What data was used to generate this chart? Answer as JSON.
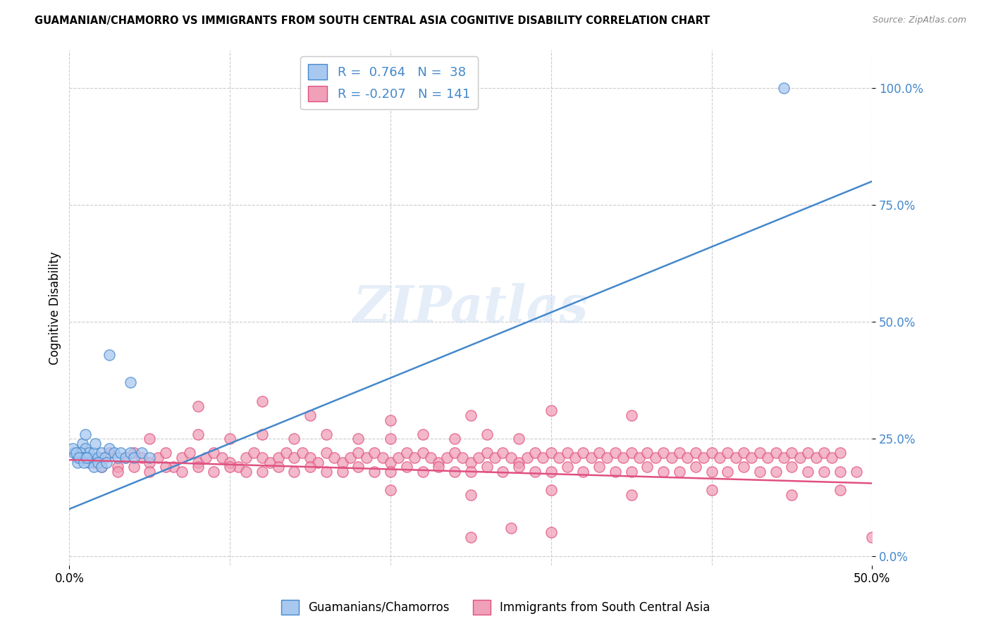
{
  "title": "GUAMANIAN/CHAMORRO VS IMMIGRANTS FROM SOUTH CENTRAL ASIA COGNITIVE DISABILITY CORRELATION CHART",
  "source": "Source: ZipAtlas.com",
  "ylabel": "Cognitive Disability",
  "ytick_vals": [
    0.0,
    25.0,
    50.0,
    75.0,
    100.0
  ],
  "ytick_labels": [
    "0.0%",
    "25.0%",
    "50.0%",
    "75.0%",
    "100.0%"
  ],
  "xtick_vals": [
    0.0,
    50.0
  ],
  "xtick_labels": [
    "0.0%",
    "50.0%"
  ],
  "xlim": [
    0.0,
    50.0
  ],
  "ylim": [
    -2.0,
    108.0
  ],
  "blue_color": "#A8C8F0",
  "pink_color": "#F0A0B8",
  "blue_line_color": "#4488CC",
  "pink_line_color": "#E05080",
  "watermark": "ZIPatlas",
  "blue_line": [
    [
      0.0,
      10.0
    ],
    [
      50.0,
      80.0
    ]
  ],
  "pink_line": [
    [
      0.0,
      20.5
    ],
    [
      50.0,
      15.5
    ]
  ],
  "blue_scatter": [
    [
      0.5,
      21.0
    ],
    [
      0.8,
      24.0
    ],
    [
      1.0,
      23.0
    ],
    [
      1.0,
      26.0
    ],
    [
      1.2,
      22.0
    ],
    [
      1.3,
      21.0
    ],
    [
      1.5,
      22.0
    ],
    [
      1.6,
      24.0
    ],
    [
      1.8,
      21.0
    ],
    [
      2.0,
      22.0
    ],
    [
      2.2,
      21.0
    ],
    [
      2.5,
      23.0
    ],
    [
      2.8,
      22.0
    ],
    [
      3.0,
      21.0
    ],
    [
      3.2,
      22.0
    ],
    [
      3.5,
      21.0
    ],
    [
      3.8,
      22.0
    ],
    [
      4.0,
      21.0
    ],
    [
      4.5,
      22.0
    ],
    [
      5.0,
      21.0
    ],
    [
      0.3,
      22.0
    ],
    [
      0.5,
      20.0
    ],
    [
      0.7,
      22.0
    ],
    [
      0.8,
      21.0
    ],
    [
      1.0,
      21.0
    ],
    [
      1.2,
      20.0
    ],
    [
      1.5,
      19.0
    ],
    [
      1.8,
      20.0
    ],
    [
      2.0,
      19.0
    ],
    [
      2.3,
      20.0
    ],
    [
      0.2,
      23.0
    ],
    [
      0.4,
      22.0
    ],
    [
      0.6,
      21.0
    ],
    [
      0.9,
      20.0
    ],
    [
      1.1,
      21.0
    ],
    [
      2.5,
      43.0
    ],
    [
      3.8,
      37.0
    ],
    [
      44.5,
      100.0
    ]
  ],
  "pink_scatter": [
    [
      1.0,
      21.0
    ],
    [
      1.5,
      20.0
    ],
    [
      2.0,
      21.0
    ],
    [
      2.5,
      22.0
    ],
    [
      3.0,
      19.0
    ],
    [
      3.5,
      21.0
    ],
    [
      4.0,
      22.0
    ],
    [
      4.5,
      21.0
    ],
    [
      5.0,
      20.0
    ],
    [
      5.5,
      21.0
    ],
    [
      6.0,
      22.0
    ],
    [
      6.5,
      19.0
    ],
    [
      7.0,
      21.0
    ],
    [
      7.5,
      22.0
    ],
    [
      8.0,
      20.0
    ],
    [
      8.5,
      21.0
    ],
    [
      9.0,
      22.0
    ],
    [
      9.5,
      21.0
    ],
    [
      10.0,
      20.0
    ],
    [
      10.5,
      19.0
    ],
    [
      11.0,
      21.0
    ],
    [
      11.5,
      22.0
    ],
    [
      12.0,
      21.0
    ],
    [
      12.5,
      20.0
    ],
    [
      13.0,
      21.0
    ],
    [
      13.5,
      22.0
    ],
    [
      14.0,
      21.0
    ],
    [
      14.5,
      22.0
    ],
    [
      15.0,
      21.0
    ],
    [
      15.5,
      20.0
    ],
    [
      16.0,
      22.0
    ],
    [
      16.5,
      21.0
    ],
    [
      17.0,
      20.0
    ],
    [
      17.5,
      21.0
    ],
    [
      18.0,
      22.0
    ],
    [
      18.5,
      21.0
    ],
    [
      19.0,
      22.0
    ],
    [
      19.5,
      21.0
    ],
    [
      20.0,
      20.0
    ],
    [
      20.5,
      21.0
    ],
    [
      21.0,
      22.0
    ],
    [
      21.5,
      21.0
    ],
    [
      22.0,
      22.0
    ],
    [
      22.5,
      21.0
    ],
    [
      23.0,
      20.0
    ],
    [
      23.5,
      21.0
    ],
    [
      24.0,
      22.0
    ],
    [
      24.5,
      21.0
    ],
    [
      25.0,
      20.0
    ],
    [
      25.5,
      21.0
    ],
    [
      26.0,
      22.0
    ],
    [
      26.5,
      21.0
    ],
    [
      27.0,
      22.0
    ],
    [
      27.5,
      21.0
    ],
    [
      28.0,
      20.0
    ],
    [
      28.5,
      21.0
    ],
    [
      29.0,
      22.0
    ],
    [
      29.5,
      21.0
    ],
    [
      30.0,
      22.0
    ],
    [
      30.5,
      21.0
    ],
    [
      31.0,
      22.0
    ],
    [
      31.5,
      21.0
    ],
    [
      32.0,
      22.0
    ],
    [
      32.5,
      21.0
    ],
    [
      33.0,
      22.0
    ],
    [
      33.5,
      21.0
    ],
    [
      34.0,
      22.0
    ],
    [
      34.5,
      21.0
    ],
    [
      35.0,
      22.0
    ],
    [
      35.5,
      21.0
    ],
    [
      36.0,
      22.0
    ],
    [
      36.5,
      21.0
    ],
    [
      37.0,
      22.0
    ],
    [
      37.5,
      21.0
    ],
    [
      38.0,
      22.0
    ],
    [
      38.5,
      21.0
    ],
    [
      39.0,
      22.0
    ],
    [
      39.5,
      21.0
    ],
    [
      40.0,
      22.0
    ],
    [
      40.5,
      21.0
    ],
    [
      41.0,
      22.0
    ],
    [
      41.5,
      21.0
    ],
    [
      42.0,
      22.0
    ],
    [
      42.5,
      21.0
    ],
    [
      43.0,
      22.0
    ],
    [
      43.5,
      21.0
    ],
    [
      44.0,
      22.0
    ],
    [
      44.5,
      21.0
    ],
    [
      45.0,
      22.0
    ],
    [
      45.5,
      21.0
    ],
    [
      46.0,
      22.0
    ],
    [
      46.5,
      21.0
    ],
    [
      47.0,
      22.0
    ],
    [
      47.5,
      21.0
    ],
    [
      48.0,
      22.0
    ],
    [
      2.0,
      19.0
    ],
    [
      3.0,
      18.0
    ],
    [
      4.0,
      19.0
    ],
    [
      5.0,
      18.0
    ],
    [
      6.0,
      19.0
    ],
    [
      7.0,
      18.0
    ],
    [
      8.0,
      19.0
    ],
    [
      9.0,
      18.0
    ],
    [
      10.0,
      19.0
    ],
    [
      11.0,
      18.0
    ],
    [
      12.0,
      18.0
    ],
    [
      13.0,
      19.0
    ],
    [
      14.0,
      18.0
    ],
    [
      15.0,
      19.0
    ],
    [
      16.0,
      18.0
    ],
    [
      17.0,
      18.0
    ],
    [
      18.0,
      19.0
    ],
    [
      19.0,
      18.0
    ],
    [
      20.0,
      18.0
    ],
    [
      21.0,
      19.0
    ],
    [
      22.0,
      18.0
    ],
    [
      23.0,
      19.0
    ],
    [
      24.0,
      18.0
    ],
    [
      25.0,
      18.0
    ],
    [
      26.0,
      19.0
    ],
    [
      27.0,
      18.0
    ],
    [
      28.0,
      19.0
    ],
    [
      29.0,
      18.0
    ],
    [
      30.0,
      18.0
    ],
    [
      31.0,
      19.0
    ],
    [
      32.0,
      18.0
    ],
    [
      33.0,
      19.0
    ],
    [
      34.0,
      18.0
    ],
    [
      35.0,
      18.0
    ],
    [
      36.0,
      19.0
    ],
    [
      37.0,
      18.0
    ],
    [
      38.0,
      18.0
    ],
    [
      39.0,
      19.0
    ],
    [
      40.0,
      18.0
    ],
    [
      41.0,
      18.0
    ],
    [
      42.0,
      19.0
    ],
    [
      43.0,
      18.0
    ],
    [
      44.0,
      18.0
    ],
    [
      45.0,
      19.0
    ],
    [
      46.0,
      18.0
    ],
    [
      47.0,
      18.0
    ],
    [
      48.0,
      18.0
    ],
    [
      49.0,
      18.0
    ],
    [
      5.0,
      25.0
    ],
    [
      8.0,
      26.0
    ],
    [
      10.0,
      25.0
    ],
    [
      12.0,
      26.0
    ],
    [
      14.0,
      25.0
    ],
    [
      16.0,
      26.0
    ],
    [
      18.0,
      25.0
    ],
    [
      20.0,
      25.0
    ],
    [
      22.0,
      26.0
    ],
    [
      24.0,
      25.0
    ],
    [
      26.0,
      26.0
    ],
    [
      28.0,
      25.0
    ],
    [
      15.0,
      30.0
    ],
    [
      20.0,
      29.0
    ],
    [
      25.0,
      30.0
    ],
    [
      30.0,
      31.0
    ],
    [
      35.0,
      30.0
    ],
    [
      8.0,
      32.0
    ],
    [
      12.0,
      33.0
    ],
    [
      20.0,
      14.0
    ],
    [
      25.0,
      13.0
    ],
    [
      30.0,
      14.0
    ],
    [
      35.0,
      13.0
    ],
    [
      40.0,
      14.0
    ],
    [
      45.0,
      13.0
    ],
    [
      48.0,
      14.0
    ],
    [
      27.5,
      6.0
    ],
    [
      30.0,
      5.0
    ],
    [
      25.0,
      4.0
    ],
    [
      50.0,
      4.0
    ]
  ]
}
